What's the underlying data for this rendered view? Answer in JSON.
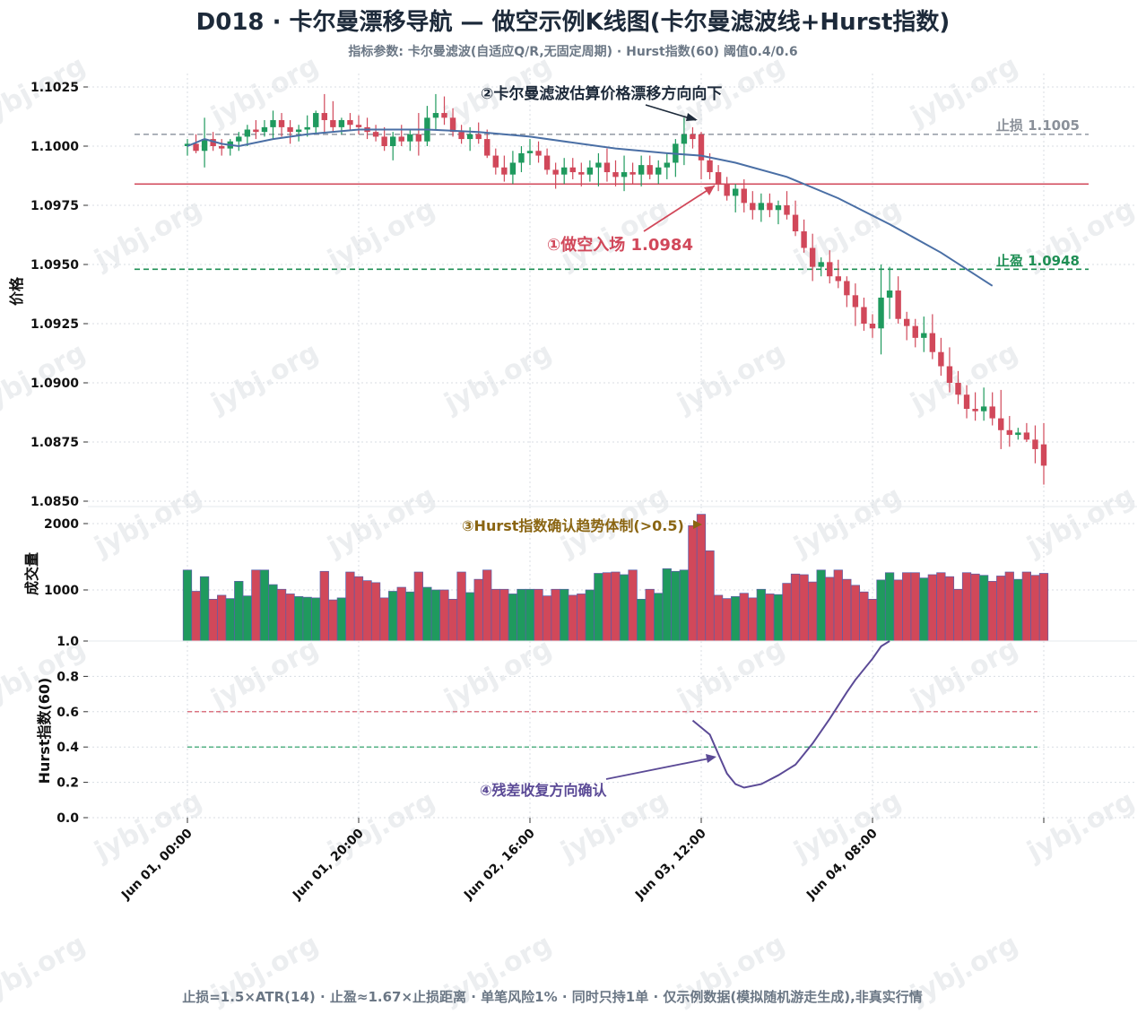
{
  "title": "D018 · 卡尔曼漂移导航 — 做空示例K线图(卡尔曼滤波线+Hurst指数)",
  "subtitle": "指标参数: 卡尔曼滤波(自适应Q/R,无固定周期) · Hurst指数(60) 阈值0.4/0.6",
  "footer": "止损=1.5×ATR(14) · 止盈≈1.67×止损距离 · 单笔风险1% · 同时只持1单 · 仅示例数据(模拟随机游走生成),非真实行情",
  "watermark": "jybj.org",
  "colors": {
    "up": "#1f9a5e",
    "down": "#d1485a",
    "kalman": "#4a6fa5",
    "hurst": "#5b4a96",
    "stop": "#9aa1aa",
    "take": "#1f8f55",
    "entry": "#d1485a",
    "vol_edge": "#5b5fa8",
    "grid": "#d8dde3",
    "axis_text": "#1d2a3a"
  },
  "chart_data": [
    {
      "type": "candlestick",
      "ylabel": "价格",
      "ylim": [
        1.0845,
        1.1035
      ],
      "yticks": [
        1.085,
        1.0875,
        1.09,
        1.0925,
        1.095,
        1.0975,
        1.1,
        1.1025
      ],
      "ytick_labels": [
        "1.0850",
        "1.0875",
        "1.0900",
        "1.0925",
        "1.0950",
        "1.0975",
        "1.1000",
        "1.1025"
      ],
      "x_axis": {
        "start": "Jun 01, 00:00",
        "bar_interval": "1h",
        "bars": 101,
        "ticks": [
          {
            "bar": 0,
            "label": "Jun 01, 00:00"
          },
          {
            "bar": 20,
            "label": "Jun 01, 20:00"
          },
          {
            "bar": 40,
            "label": "Jun 02, 16:00"
          },
          {
            "bar": 60,
            "label": "Jun 03, 12:00"
          },
          {
            "bar": 80,
            "label": "Jun 04, 08:00"
          },
          {
            "bar": 100,
            "label": ""
          }
        ]
      },
      "ohlc": [
        [
          1.1,
          1.1003,
          1.0996,
          1.1001
        ],
        [
          1.1001,
          1.1005,
          1.0997,
          1.0998
        ],
        [
          1.0998,
          1.1012,
          1.0991,
          1.1003
        ],
        [
          1.1003,
          1.1006,
          1.0998,
          1.1
        ],
        [
          1.1,
          1.1003,
          1.0996,
          1.0999
        ],
        [
          1.0999,
          1.1003,
          1.0996,
          1.1002
        ],
        [
          1.1002,
          1.1006,
          1.0998,
          1.1004
        ],
        [
          1.1004,
          1.1009,
          1.1,
          1.1007
        ],
        [
          1.1007,
          1.1011,
          1.1003,
          1.1006
        ],
        [
          1.1006,
          1.1011,
          1.1004,
          1.1008
        ],
        [
          1.1008,
          1.1015,
          1.1003,
          1.1011
        ],
        [
          1.1011,
          1.1014,
          1.1004,
          1.1008
        ],
        [
          1.1008,
          1.1011,
          1.1001,
          1.1006
        ],
        [
          1.1006,
          1.1009,
          1.1002,
          1.1007
        ],
        [
          1.1007,
          1.1013,
          1.1004,
          1.1008
        ],
        [
          1.1008,
          1.1015,
          1.1005,
          1.1014
        ],
        [
          1.1014,
          1.1022,
          1.1006,
          1.1011
        ],
        [
          1.1011,
          1.1019,
          1.1006,
          1.1008
        ],
        [
          1.1008,
          1.1012,
          1.1005,
          1.1011
        ],
        [
          1.1011,
          1.1014,
          1.1007,
          1.1009
        ],
        [
          1.1009,
          1.1013,
          1.1005,
          1.1008
        ],
        [
          1.1008,
          1.1012,
          1.1003,
          1.1006
        ],
        [
          1.1006,
          1.1009,
          1.1002,
          1.1004
        ],
        [
          1.1004,
          1.1008,
          1.0998,
          1.1
        ],
        [
          1.1,
          1.1006,
          1.0994,
          1.1004
        ],
        [
          1.1004,
          1.1009,
          1.1,
          1.1002
        ],
        [
          1.1002,
          1.1007,
          1.0998,
          1.1005
        ],
        [
          1.1005,
          1.1014,
          1.0996,
          1.1002
        ],
        [
          1.1002,
          1.1017,
          1.1,
          1.1012
        ],
        [
          1.1012,
          1.1022,
          1.1007,
          1.1014
        ],
        [
          1.1014,
          1.1021,
          1.1009,
          1.1012
        ],
        [
          1.1012,
          1.1016,
          1.1004,
          1.1006
        ],
        [
          1.1006,
          1.1009,
          1.1001,
          1.1003
        ],
        [
          1.1003,
          1.1008,
          1.0998,
          1.1005
        ],
        [
          1.1005,
          1.101,
          1.1001,
          1.1003
        ],
        [
          1.1003,
          1.1007,
          1.0995,
          1.0996
        ],
        [
          1.0996,
          1.0999,
          1.0988,
          1.0991
        ],
        [
          1.0991,
          1.0996,
          1.0985,
          1.0988
        ],
        [
          1.0988,
          1.0998,
          1.0984,
          1.0993
        ],
        [
          1.0993,
          1.1,
          1.0989,
          1.0997
        ],
        [
          1.0997,
          1.1003,
          1.0992,
          1.0998
        ],
        [
          1.0998,
          1.1002,
          1.0993,
          1.0996
        ],
        [
          1.0996,
          1.0999,
          1.0988,
          1.099
        ],
        [
          1.099,
          1.0993,
          1.0982,
          1.0988
        ],
        [
          1.0988,
          1.0995,
          1.0984,
          1.0991
        ],
        [
          1.0991,
          1.0995,
          1.0986,
          1.0989
        ],
        [
          1.0989,
          1.0993,
          1.0983,
          1.0988
        ],
        [
          1.0988,
          1.0994,
          1.0985,
          1.0991
        ],
        [
          1.0991,
          1.0997,
          1.0983,
          1.0993
        ],
        [
          1.0993,
          1.0999,
          1.0985,
          1.0989
        ],
        [
          1.0989,
          1.0994,
          1.0983,
          1.0987
        ],
        [
          1.0987,
          1.0996,
          1.0981,
          1.0989
        ],
        [
          1.0989,
          1.0993,
          1.0984,
          1.0988
        ],
        [
          1.0988,
          1.0996,
          1.0983,
          1.0992
        ],
        [
          1.0992,
          1.0996,
          1.0986,
          1.0988
        ],
        [
          1.0988,
          1.0994,
          1.0984,
          1.0991
        ],
        [
          1.0991,
          1.0997,
          1.0986,
          1.0993
        ],
        [
          1.0993,
          1.1003,
          1.0987,
          1.1001
        ],
        [
          1.1001,
          1.1012,
          1.0992,
          1.1005
        ],
        [
          1.1005,
          1.1008,
          1.0999,
          1.1003
        ],
        [
          1.1005,
          1.1006,
          1.0986,
          1.0994
        ],
        [
          1.0994,
          1.0997,
          1.0986,
          1.0989
        ],
        [
          1.0989,
          1.0992,
          1.0981,
          1.0984
        ],
        [
          1.0984,
          1.0987,
          1.0977,
          1.0979
        ],
        [
          1.0979,
          1.0984,
          1.0972,
          1.0982
        ],
        [
          1.0982,
          1.0986,
          1.0972,
          1.0976
        ],
        [
          1.0976,
          1.0981,
          1.0969,
          1.0973
        ],
        [
          1.0973,
          1.098,
          1.0968,
          1.0976
        ],
        [
          1.0976,
          1.098,
          1.097,
          1.0973
        ],
        [
          1.0973,
          1.0977,
          1.0967,
          1.0975
        ],
        [
          1.0975,
          1.0981,
          1.0969,
          1.0971
        ],
        [
          1.0971,
          1.0977,
          1.0962,
          1.0964
        ],
        [
          1.0964,
          1.0969,
          1.0955,
          1.0957
        ],
        [
          1.0957,
          1.0963,
          1.0943,
          1.0949
        ],
        [
          1.0949,
          1.0953,
          1.0945,
          1.0951
        ],
        [
          1.0951,
          1.0956,
          1.0942,
          1.0945
        ],
        [
          1.0945,
          1.0952,
          1.094,
          1.0943
        ],
        [
          1.0943,
          1.0945,
          1.0932,
          1.0937
        ],
        [
          1.0937,
          1.0942,
          1.0924,
          1.0932
        ],
        [
          1.0932,
          1.0936,
          1.0922,
          1.0925
        ],
        [
          1.0925,
          1.0929,
          1.0919,
          1.0923
        ],
        [
          1.0923,
          1.095,
          1.0912,
          1.0936
        ],
        [
          1.0936,
          1.0949,
          1.0927,
          1.0939
        ],
        [
          1.0939,
          1.0945,
          1.0925,
          1.0927
        ],
        [
          1.0927,
          1.093,
          1.0918,
          1.0924
        ],
        [
          1.0924,
          1.0927,
          1.0915,
          1.0919
        ],
        [
          1.0919,
          1.0928,
          1.0913,
          1.0921
        ],
        [
          1.0921,
          1.0929,
          1.091,
          1.0913
        ],
        [
          1.0913,
          1.0919,
          1.0903,
          1.0907
        ],
        [
          1.0907,
          1.0915,
          1.0896,
          1.09
        ],
        [
          1.09,
          1.0905,
          1.0891,
          1.0895
        ],
        [
          1.0895,
          1.0899,
          1.0885,
          1.0889
        ],
        [
          1.0889,
          1.0896,
          1.0884,
          1.0888
        ],
        [
          1.0888,
          1.0898,
          1.0884,
          1.089
        ],
        [
          1.089,
          1.0896,
          1.0882,
          1.0885
        ],
        [
          1.0885,
          1.0897,
          1.0872,
          1.088
        ],
        [
          1.088,
          1.0886,
          1.0873,
          1.0878
        ],
        [
          1.0878,
          1.0881,
          1.0876,
          1.0879
        ],
        [
          1.0879,
          1.0883,
          1.0875,
          1.0876
        ],
        [
          1.0876,
          1.0882,
          1.0866,
          1.0872
        ],
        [
          1.0874,
          1.0883,
          1.0857,
          1.0865
        ]
      ],
      "kalman_line": [
        [
          0,
          1.1
        ],
        [
          2,
          1.1003
        ],
        [
          4,
          1.1001
        ],
        [
          6,
          1.1
        ],
        [
          10,
          1.1003
        ],
        [
          14,
          1.1005
        ],
        [
          20,
          1.1007
        ],
        [
          28,
          1.1007
        ],
        [
          34,
          1.1006
        ],
        [
          40,
          1.1004
        ],
        [
          46,
          1.1001
        ],
        [
          50,
          1.0999
        ],
        [
          56,
          1.0997
        ],
        [
          60,
          1.0996
        ],
        [
          64,
          1.0993
        ],
        [
          70,
          1.0987
        ],
        [
          76,
          1.0978
        ],
        [
          82,
          1.0967
        ],
        [
          88,
          1.0955
        ],
        [
          94,
          1.0941
        ]
      ],
      "levels": {
        "stop_loss": {
          "value": 1.1005,
          "label": "止损 1.1005"
        },
        "entry": {
          "value": 1.0984
        },
        "take_profit": {
          "value": 1.0948,
          "label": "止盈 1.0948"
        }
      },
      "annotations": [
        {
          "text": "①做空入场 1.0984",
          "target_bar": 62,
          "target_price": 1.0984
        },
        {
          "text": "②卡尔曼滤波估算价格漂移方向向下",
          "target_bar": 60,
          "target_price": 1.101
        }
      ]
    },
    {
      "type": "bar",
      "ylabel": "成交量",
      "ylim": [
        200,
        2200
      ],
      "yticks": [
        1000,
        2000
      ],
      "ytick_labels": [
        "1000",
        "2000"
      ],
      "values": [
        1300,
        980,
        1200,
        860,
        920,
        870,
        1130,
        910,
        1300,
        1300,
        1080,
        1010,
        940,
        900,
        890,
        880,
        1280,
        850,
        880,
        1270,
        1200,
        1140,
        1110,
        880,
        980,
        1040,
        970,
        1270,
        1040,
        1000,
        1000,
        860,
        1270,
        960,
        1160,
        1300,
        1010,
        1010,
        940,
        1010,
        1010,
        1010,
        910,
        1010,
        1010,
        920,
        940,
        1000,
        1250,
        1260,
        1270,
        1230,
        1300,
        860,
        1010,
        950,
        1320,
        1280,
        1300,
        1970,
        2140,
        1590,
        920,
        870,
        900,
        950,
        880,
        1010,
        940,
        930,
        1100,
        1240,
        1230,
        1120,
        1300,
        1190,
        1300,
        1160,
        1070,
        970,
        860,
        1150,
        1260,
        1150,
        1260,
        1260,
        1180,
        1230,
        1260,
        1200,
        1010,
        1260,
        1240,
        1220,
        1130,
        1210,
        1270,
        1160,
        1270,
        1220,
        1250
      ],
      "annotation": "③Hurst指数确认趋势体制(>0.5)"
    },
    {
      "type": "line",
      "ylabel": "Hurst指数(60)",
      "ylim": [
        0,
        1.0
      ],
      "yticks": [
        0.0,
        0.2,
        0.4,
        0.6,
        0.8,
        1.0
      ],
      "ytick_labels": [
        "0.0",
        "0.2",
        "0.4",
        "0.6",
        "0.8",
        "1.0"
      ],
      "thresholds": [
        0.6,
        0.4
      ],
      "hurst": [
        [
          59,
          0.55
        ],
        [
          61,
          0.47
        ],
        [
          62,
          0.36
        ],
        [
          63,
          0.25
        ],
        [
          64,
          0.19
        ],
        [
          65,
          0.17
        ],
        [
          67,
          0.19
        ],
        [
          69,
          0.24
        ],
        [
          70,
          0.27
        ],
        [
          71,
          0.3
        ],
        [
          73,
          0.42
        ],
        [
          75,
          0.56
        ],
        [
          77,
          0.71
        ],
        [
          78,
          0.78
        ],
        [
          80,
          0.9
        ],
        [
          81,
          0.97
        ],
        [
          82,
          1.0
        ]
      ],
      "annotation": "④残差收复方向确认"
    }
  ]
}
